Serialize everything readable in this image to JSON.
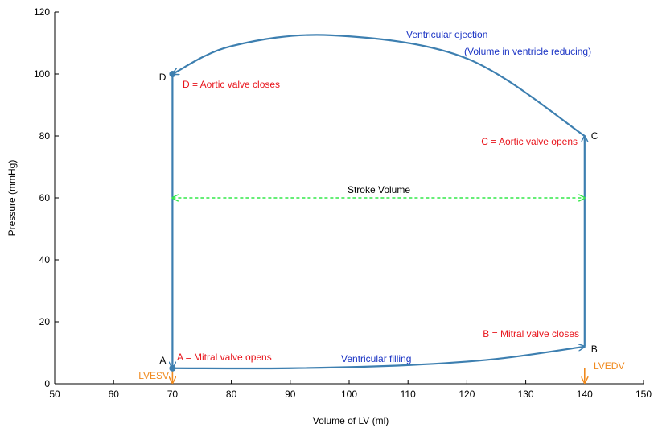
{
  "chart_data": {
    "type": "line",
    "xlabel": "Volume of LV (ml)",
    "ylabel": "Pressure (mmHg)",
    "xlim": [
      50,
      150
    ],
    "ylim": [
      0,
      120
    ],
    "x_ticks": [
      50,
      60,
      70,
      80,
      90,
      100,
      110,
      120,
      130,
      140,
      150
    ],
    "y_ticks": [
      0,
      20,
      40,
      60,
      80,
      100,
      120
    ],
    "grid": false,
    "loop_color": "#3d7fb0",
    "series": [
      {
        "segment": "filling",
        "points": [
          [
            70,
            5
          ],
          [
            90,
            5
          ],
          [
            110,
            6
          ],
          [
            125,
            8
          ],
          [
            140,
            12
          ]
        ]
      },
      {
        "segment": "isovolumetric-contraction",
        "points": [
          [
            140,
            12
          ],
          [
            140,
            80
          ]
        ]
      },
      {
        "segment": "ejection",
        "points": [
          [
            140,
            80
          ],
          [
            120,
            105
          ],
          [
            97,
            112.5
          ],
          [
            80,
            109
          ],
          [
            70,
            100
          ]
        ]
      },
      {
        "segment": "isovolumetric-relaxation",
        "points": [
          [
            70,
            100
          ],
          [
            70,
            5
          ]
        ]
      }
    ],
    "points": [
      {
        "id": "A",
        "label": "A",
        "x": 70,
        "y": 5
      },
      {
        "id": "B",
        "label": "B",
        "x": 140,
        "y": 12
      },
      {
        "id": "C",
        "label": "C",
        "x": 140,
        "y": 80
      },
      {
        "id": "D",
        "label": "D",
        "x": 70,
        "y": 100
      }
    ],
    "annotations": [
      {
        "id": "mitral-opens",
        "text": "A = Mitral valve opens",
        "color": "#e8141b"
      },
      {
        "id": "mitral-closes",
        "text": "B = Mitral valve closes",
        "color": "#e8141b"
      },
      {
        "id": "aortic-opens",
        "text": "C = Aortic valve opens",
        "color": "#e8141b"
      },
      {
        "id": "aortic-closes",
        "text": "D = Aortic valve closes",
        "color": "#e8141b"
      },
      {
        "id": "ventricular-filling",
        "text": "Ventricular filling",
        "color": "#1a33c4"
      },
      {
        "id": "ventricular-ejection",
        "text": "Ventricular ejection",
        "color": "#1a33c4"
      },
      {
        "id": "volume-reducing",
        "text": "(Volume in ventricle reducing)",
        "color": "#1a33c4"
      },
      {
        "id": "stroke-volume",
        "text": "Stroke Volume",
        "color": "#000000"
      },
      {
        "id": "lvesv",
        "text": "LVESV",
        "color": "#f08a1e"
      },
      {
        "id": "lvedv",
        "text": "LVEDV",
        "color": "#f08a1e"
      }
    ],
    "stroke_volume": {
      "x_start": 70,
      "x_end": 140,
      "y": 60,
      "color": "#33e84a"
    },
    "volume_markers": [
      {
        "id": "lvesv",
        "x": 70,
        "color": "#f08a1e"
      },
      {
        "id": "lvedv",
        "x": 140,
        "color": "#f08a1e"
      }
    ]
  }
}
